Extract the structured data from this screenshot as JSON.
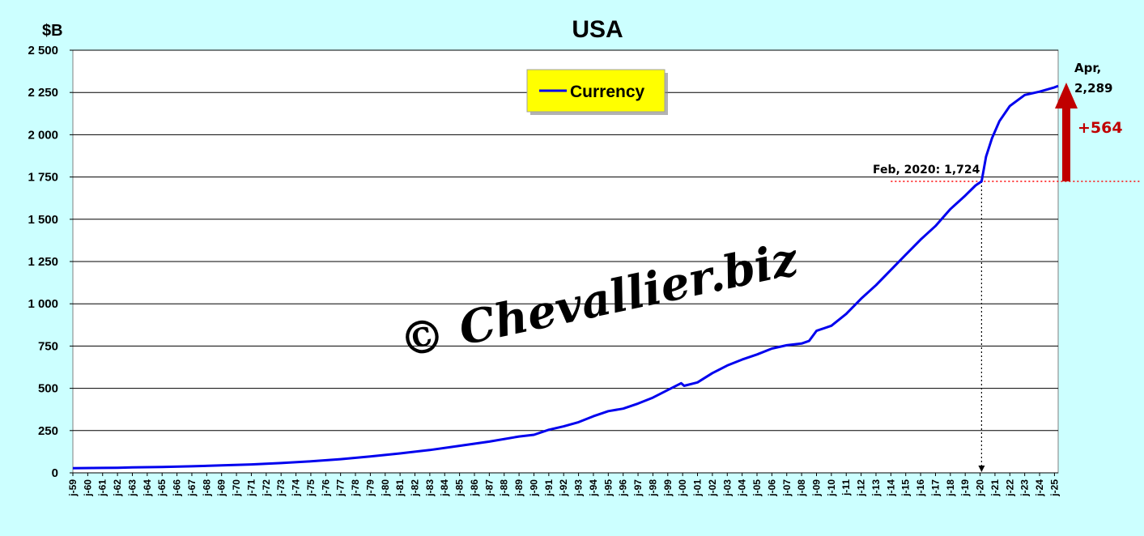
{
  "chart_data": {
    "type": "line",
    "title": "USA",
    "ylabel": "$B",
    "ylim": [
      0,
      2500
    ],
    "yticks": [
      0,
      250,
      500,
      750,
      1000,
      1250,
      1500,
      1750,
      2000,
      2250,
      2500
    ],
    "ytick_labels": [
      "0",
      "250",
      "500",
      "750",
      "1 000",
      "1 250",
      "1 500",
      "1 750",
      "2 000",
      "2 250",
      "2 500"
    ],
    "xlim": [
      1959.0,
      2025.25
    ],
    "xtick_labels": [
      "j-59",
      "j-60",
      "j-61",
      "j-62",
      "j-63",
      "j-64",
      "j-65",
      "j-66",
      "j-67",
      "j-68",
      "j-69",
      "j-70",
      "j-71",
      "j-72",
      "j-73",
      "j-74",
      "j-75",
      "j-76",
      "j-77",
      "j-78",
      "j-79",
      "j-80",
      "j-81",
      "j-82",
      "j-83",
      "j-84",
      "j-85",
      "j-86",
      "j-87",
      "j-88",
      "j-89",
      "j-90",
      "j-91",
      "j-92",
      "j-93",
      "j-94",
      "j-95",
      "j-96",
      "j-97",
      "j-98",
      "j-99",
      "j-00",
      "j-01",
      "j-02",
      "j-03",
      "j-04",
      "j-05",
      "j-06",
      "j-07",
      "j-08",
      "j-09",
      "j-10",
      "j-11",
      "j-12",
      "j-13",
      "j-14",
      "j-15",
      "j-16",
      "j-17",
      "j-18",
      "j-19",
      "j-20",
      "j-21",
      "j-22",
      "j-23",
      "j-24",
      "j-25"
    ],
    "grid": true,
    "legend_position": "top-center",
    "series": [
      {
        "name": "Currency",
        "color": "#0000ee",
        "points": [
          [
            1959.0,
            28
          ],
          [
            1961.0,
            29
          ],
          [
            1962.0,
            30
          ],
          [
            1963.0,
            32
          ],
          [
            1965.0,
            35
          ],
          [
            1967.0,
            39
          ],
          [
            1969.0,
            44
          ],
          [
            1971.0,
            50
          ],
          [
            1973.0,
            58
          ],
          [
            1975.0,
            68
          ],
          [
            1977.0,
            81
          ],
          [
            1979.0,
            97
          ],
          [
            1981.0,
            115
          ],
          [
            1983.0,
            135
          ],
          [
            1985.0,
            160
          ],
          [
            1987.0,
            185
          ],
          [
            1989.0,
            215
          ],
          [
            1990.0,
            225
          ],
          [
            1991.0,
            255
          ],
          [
            1992.0,
            275
          ],
          [
            1993.0,
            300
          ],
          [
            1994.0,
            335
          ],
          [
            1995.0,
            365
          ],
          [
            1996.0,
            380
          ],
          [
            1997.0,
            410
          ],
          [
            1998.0,
            445
          ],
          [
            1999.0,
            490
          ],
          [
            1999.9,
            530
          ],
          [
            2000.1,
            515
          ],
          [
            2001.0,
            535
          ],
          [
            2002.0,
            590
          ],
          [
            2003.0,
            635
          ],
          [
            2004.0,
            670
          ],
          [
            2005.0,
            700
          ],
          [
            2006.0,
            735
          ],
          [
            2007.0,
            755
          ],
          [
            2008.0,
            765
          ],
          [
            2008.5,
            780
          ],
          [
            2009.0,
            840
          ],
          [
            2010.0,
            870
          ],
          [
            2011.0,
            940
          ],
          [
            2012.0,
            1030
          ],
          [
            2013.0,
            1110
          ],
          [
            2014.0,
            1200
          ],
          [
            2015.0,
            1290
          ],
          [
            2016.0,
            1380
          ],
          [
            2017.0,
            1460
          ],
          [
            2018.0,
            1560
          ],
          [
            2019.0,
            1640
          ],
          [
            2019.7,
            1700
          ],
          [
            2020.1,
            1724
          ],
          [
            2020.4,
            1870
          ],
          [
            2020.8,
            1980
          ],
          [
            2021.3,
            2080
          ],
          [
            2022.0,
            2170
          ],
          [
            2023.0,
            2235
          ],
          [
            2024.0,
            2255
          ],
          [
            2025.0,
            2280
          ],
          [
            2025.25,
            2289
          ]
        ]
      }
    ],
    "annotations": {
      "reference_label": "Feb, 2020: 1,724",
      "reference_x": 2020.1,
      "reference_y": 1724,
      "end_label_line1": "Apr,",
      "end_label_line2": "2,289",
      "end_y": 2289,
      "change_label": "+564",
      "change_color": "#c00000",
      "reference_line_color": "#ff0000"
    }
  },
  "watermark": "© Chevallier.biz",
  "colors": {
    "background": "#ccffff",
    "plot_area": "#ffffff",
    "legend_background": "#ffff00",
    "line": "#0000ee"
  }
}
